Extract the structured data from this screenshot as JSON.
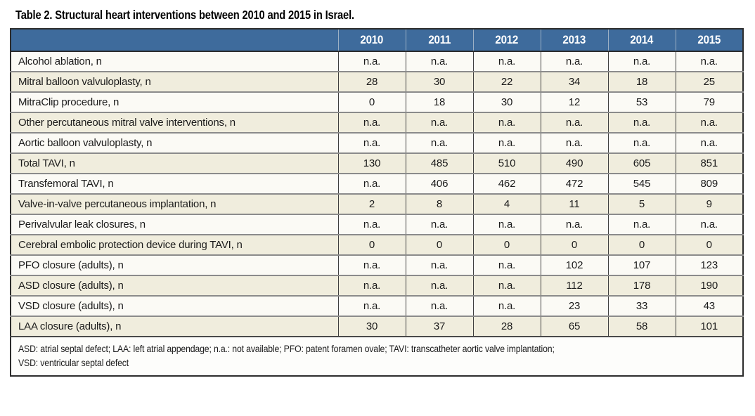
{
  "title": "Table 2. Structural heart interventions between 2010 and 2015 in Israel.",
  "table": {
    "columns": [
      "2010",
      "2011",
      "2012",
      "2013",
      "2014",
      "2015"
    ],
    "rows": [
      {
        "label": "Alcohol ablation, n",
        "values": [
          "n.a.",
          "n.a.",
          "n.a.",
          "n.a.",
          "n.a.",
          "n.a."
        ]
      },
      {
        "label": "Mitral balloon valvuloplasty, n",
        "values": [
          "28",
          "30",
          "22",
          "34",
          "18",
          "25"
        ]
      },
      {
        "label": "MitraClip procedure, n",
        "values": [
          "0",
          "18",
          "30",
          "12",
          "53",
          "79"
        ]
      },
      {
        "label": "Other percutaneous mitral valve interventions, n",
        "values": [
          "n.a.",
          "n.a.",
          "n.a.",
          "n.a.",
          "n.a.",
          "n.a."
        ]
      },
      {
        "label": "Aortic balloon valvuloplasty, n",
        "values": [
          "n.a.",
          "n.a.",
          "n.a.",
          "n.a.",
          "n.a.",
          "n.a."
        ]
      },
      {
        "label": "Total TAVI, n",
        "values": [
          "130",
          "485",
          "510",
          "490",
          "605",
          "851"
        ]
      },
      {
        "label": "Transfemoral TAVI, n",
        "values": [
          "n.a.",
          "406",
          "462",
          "472",
          "545",
          "809"
        ]
      },
      {
        "label": "Valve-in-valve percutaneous implantation, n",
        "values": [
          "2",
          "8",
          "4",
          "11",
          "5",
          "9"
        ]
      },
      {
        "label": "Perivalvular leak closures, n",
        "values": [
          "n.a.",
          "n.a.",
          "n.a.",
          "n.a.",
          "n.a.",
          "n.a."
        ]
      },
      {
        "label": "Cerebral embolic protection device during TAVI, n",
        "values": [
          "0",
          "0",
          "0",
          "0",
          "0",
          "0"
        ]
      },
      {
        "label": "PFO closure (adults), n",
        "values": [
          "n.a.",
          "n.a.",
          "n.a.",
          "102",
          "107",
          "123"
        ]
      },
      {
        "label": "ASD closure (adults), n",
        "values": [
          "n.a.",
          "n.a.",
          "n.a.",
          "112",
          "178",
          "190"
        ]
      },
      {
        "label": "VSD closure (adults), n",
        "values": [
          "n.a.",
          "n.a.",
          "n.a.",
          "23",
          "33",
          "43"
        ]
      },
      {
        "label": "LAA closure (adults), n",
        "values": [
          "30",
          "37",
          "28",
          "65",
          "58",
          "101"
        ]
      }
    ]
  },
  "footnote_lines": [
    "ASD: atrial septal defect; LAA: left atrial appendage; n.a.: not available; PFO: patent foramen ovale; TAVI: transcatheter aortic valve implantation;",
    "VSD: ventricular septal defect"
  ],
  "colors": {
    "header_bg": "#3e6b9c",
    "header_text": "#ffffff",
    "row_bg": "#fbfaf5",
    "row_alt_bg": "#f0eddd",
    "border_dark": "#2d2d2d",
    "border_row": "#8b8b8b",
    "border_col": "#3e3e3e",
    "header_divider": "#9db1c5",
    "text": "#1b1b1b"
  }
}
